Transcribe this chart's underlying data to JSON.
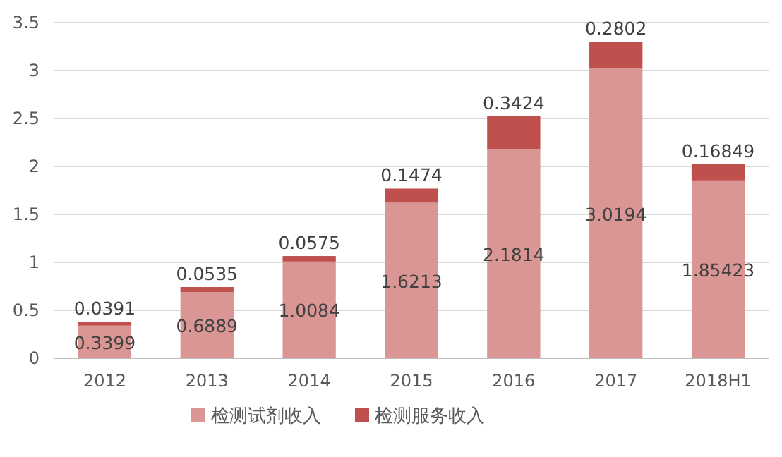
{
  "chart_data": {
    "type": "bar",
    "stacked": true,
    "categories": [
      "2012",
      "2013",
      "2014",
      "2015",
      "2016",
      "2017",
      "2018H1"
    ],
    "series": [
      {
        "name": "检测试剂收入",
        "color": "#d99694",
        "values": [
          0.3399,
          0.6889,
          1.0084,
          1.6213,
          2.1814,
          3.0194,
          1.85423
        ]
      },
      {
        "name": "检测服务收入",
        "color": "#c0504d",
        "values": [
          0.0391,
          0.0535,
          0.0575,
          0.1474,
          0.3424,
          0.2802,
          0.16849
        ]
      }
    ],
    "ylim": [
      0,
      3.5
    ],
    "yticks": [
      0,
      0.5,
      1,
      1.5,
      2,
      2.5,
      3,
      3.5
    ],
    "grid": "y",
    "legend": "bottom",
    "data_labels": true
  }
}
